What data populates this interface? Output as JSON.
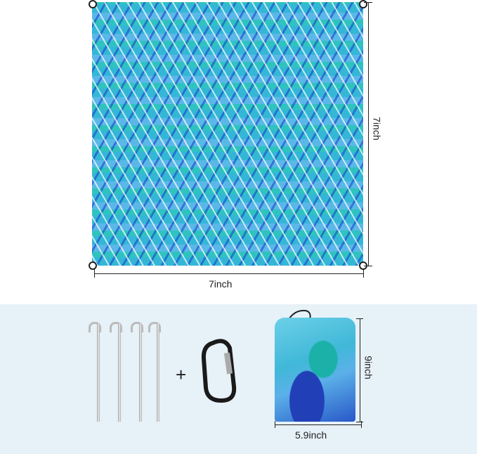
{
  "mat": {
    "width_label": "7inch",
    "height_label": "7inch"
  },
  "accessories": {
    "plus": "+"
  },
  "bag": {
    "width_label": "5.9inch",
    "height_label": "9inch"
  },
  "colors": {
    "panel": "#e6f1f8",
    "mat_primary": "#34b7d6",
    "mat_accent": "#2140b8"
  }
}
